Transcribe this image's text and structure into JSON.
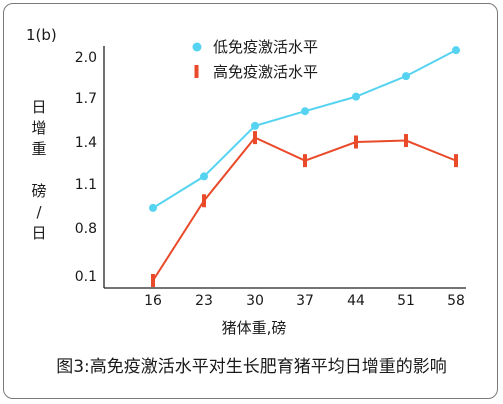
{
  "panel_label": "1(b)",
  "caption": "图3:高免疫激活水平对生长肥育猪平均日增重的影响",
  "chart_data": {
    "type": "line",
    "xlabel": "猪体重,磅",
    "ylabel": "日\n增\n重\n\n磅\n/\n日",
    "categories": [
      "16",
      "23",
      "30",
      "37",
      "44",
      "51",
      "58"
    ],
    "y_ticks": [
      "2.0",
      "1.7",
      "1.4",
      "1.1",
      "0.8",
      "0.1"
    ],
    "legend_position": "top-right",
    "grid": false,
    "series": [
      {
        "name": "低免疫激活水平",
        "marker": "circle",
        "color": "#55d3f0",
        "values": [
          0.94,
          1.16,
          1.51,
          1.61,
          1.71,
          1.86,
          2.05
        ]
      },
      {
        "name": "高免疫激活水平",
        "marker": "bar",
        "color": "#e84a2a",
        "values": [
          0.05,
          0.99,
          1.43,
          1.27,
          1.4,
          1.41,
          1.27
        ]
      }
    ]
  }
}
